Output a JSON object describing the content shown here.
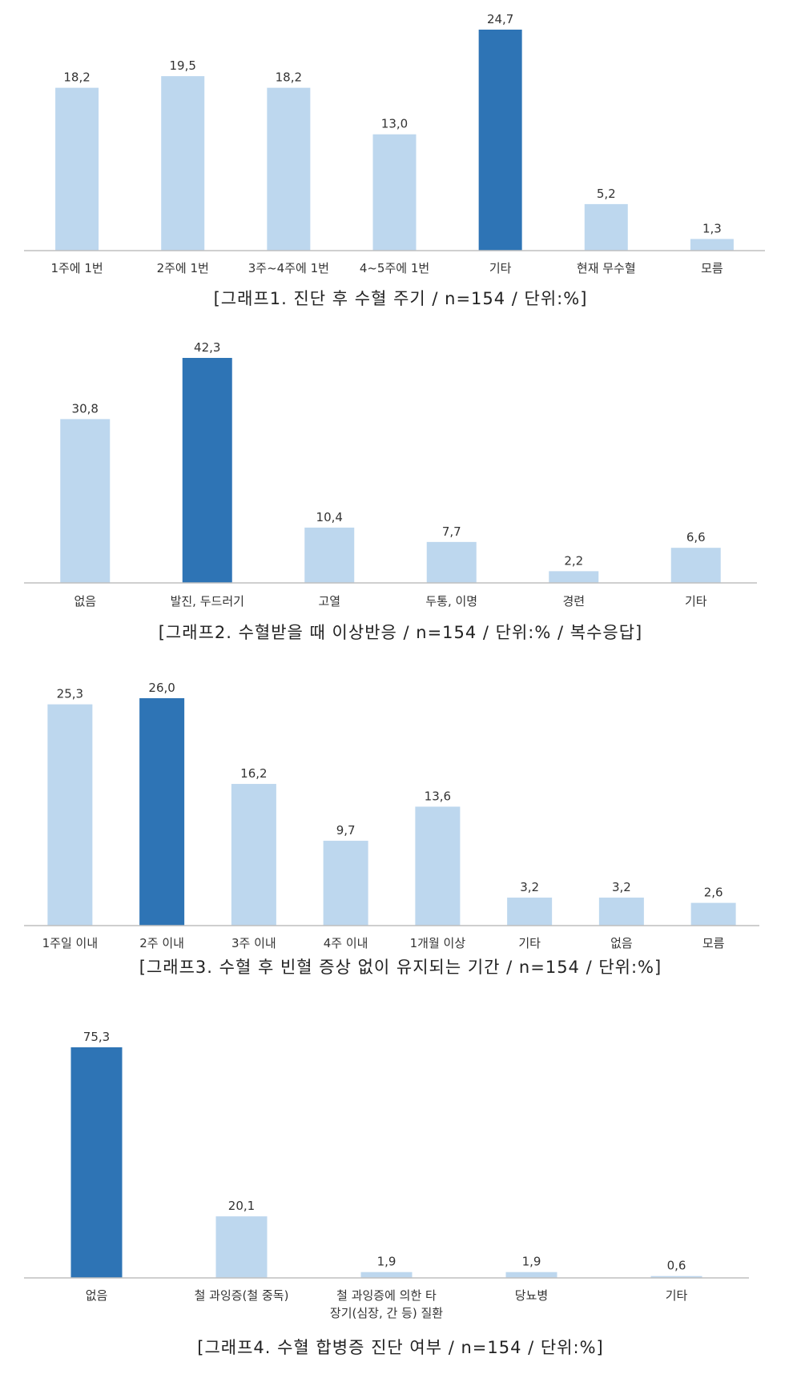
{
  "chart_data": [
    {
      "type": "bar",
      "title": "[그래프1. 진단 후 수혈 주기 / n=154 / 단위:%]",
      "categories": [
        "1주에 1번",
        "2주에 1번",
        "3주~4주에 1번",
        "4~5주에 1번",
        "기타",
        "현재 무수혈",
        "모름"
      ],
      "values": [
        18.2,
        19.5,
        18.2,
        13.0,
        24.7,
        5.2,
        1.3
      ],
      "value_labels": [
        "18,2",
        "19,5",
        "18,2",
        "13,0",
        "24,7",
        "5,2",
        "1,3"
      ],
      "highlight_index": 4,
      "ylim": [
        0,
        24.7
      ],
      "grid": false,
      "colors": {
        "bar": "#bdd7ee",
        "highlight": "#2e74b5",
        "axis": "#bfbfbf"
      }
    },
    {
      "type": "bar",
      "title": "[그래프2. 수혈받을 때 이상반응 / n=154 / 단위:% / 복수응답]",
      "categories": [
        "없음",
        "발진, 두드러기",
        "고열",
        "두통, 이명",
        "경련",
        "기타"
      ],
      "values": [
        30.8,
        42.3,
        10.4,
        7.7,
        2.2,
        6.6
      ],
      "value_labels": [
        "30,8",
        "42,3",
        "10,4",
        "7,7",
        "2,2",
        "6,6"
      ],
      "highlight_index": 1,
      "ylim": [
        0,
        42.3
      ],
      "grid": false,
      "colors": {
        "bar": "#bdd7ee",
        "highlight": "#2e74b5",
        "axis": "#bfbfbf"
      }
    },
    {
      "type": "bar",
      "title": "[그래프3. 수혈 후 빈혈 증상 없이 유지되는 기간 / n=154 / 단위:%]",
      "categories": [
        "1주일 이내",
        "2주 이내",
        "3주 이내",
        "4주 이내",
        "1개월 이상",
        "기타",
        "없음",
        "모름"
      ],
      "values": [
        25.3,
        26.0,
        16.2,
        9.7,
        13.6,
        3.2,
        3.2,
        2.6
      ],
      "value_labels": [
        "25,3",
        "26,0",
        "16,2",
        "9,7",
        "13,6",
        "3,2",
        "3,2",
        "2,6"
      ],
      "highlight_index": 1,
      "ylim": [
        0,
        26.0
      ],
      "grid": false,
      "colors": {
        "bar": "#bdd7ee",
        "highlight": "#2e74b5",
        "axis": "#bfbfbf"
      }
    },
    {
      "type": "bar",
      "title": "[그래프4. 수혈 합병증 진단 여부 / n=154 / 단위:%]",
      "categories": [
        "없음",
        "철 과잉증(철 중독)",
        "철 과잉증에 의한 타\n장기(심장, 간 등) 질환",
        "당뇨병",
        "기타"
      ],
      "values": [
        75.3,
        20.1,
        1.9,
        1.9,
        0.6
      ],
      "value_labels": [
        "75,3",
        "20,1",
        "1,9",
        "1,9",
        "0,6"
      ],
      "highlight_index": 0,
      "ylim": [
        0,
        75.3
      ],
      "grid": false,
      "colors": {
        "bar": "#bdd7ee",
        "highlight": "#2e74b5",
        "axis": "#bfbfbf"
      }
    }
  ]
}
